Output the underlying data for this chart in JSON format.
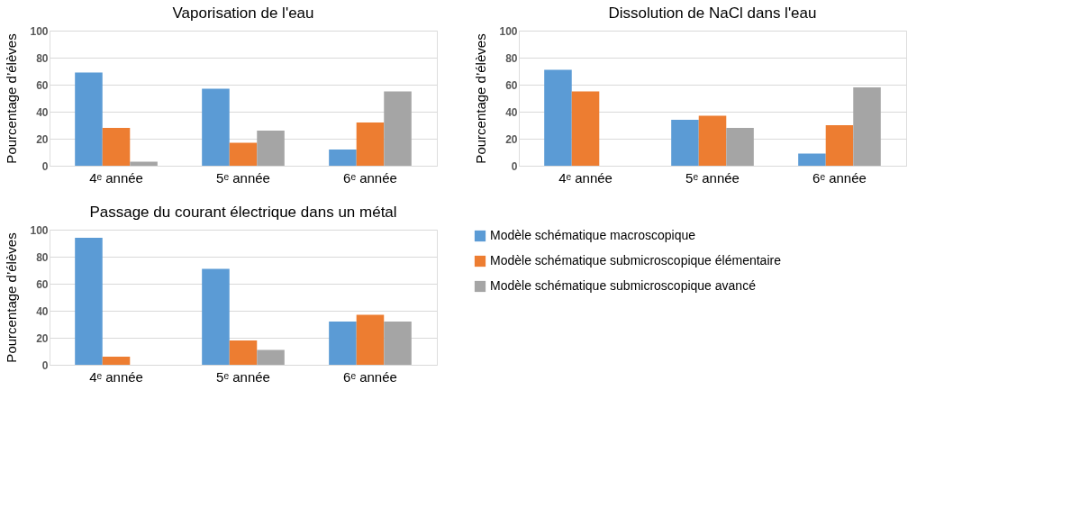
{
  "chart_data": [
    {
      "type": "bar",
      "title": "Vaporisation de l'eau",
      "ylabel": "Pourcentage d’élèves",
      "categories": [
        "4ᵉ année",
        "5ᵉ année",
        "6ᵉ année"
      ],
      "ylim": [
        0,
        100
      ],
      "yticks": [
        0,
        20,
        40,
        60,
        80,
        100
      ],
      "grid": "y",
      "series": [
        {
          "color": "#5b9bd5",
          "values": [
            69,
            57,
            12
          ]
        },
        {
          "color": "#ed7d31",
          "values": [
            28,
            17,
            32
          ]
        },
        {
          "color": "#a5a5a5",
          "values": [
            3,
            26,
            55
          ]
        }
      ]
    },
    {
      "type": "bar",
      "title": "Dissolution de NaCl dans l'eau",
      "ylabel": "Pourcentage d’élèves",
      "categories": [
        "4ᵉ année",
        "5ᵉ année",
        "6ᵉ année"
      ],
      "ylim": [
        0,
        100
      ],
      "yticks": [
        0,
        20,
        40,
        60,
        80,
        100
      ],
      "grid": "y",
      "series": [
        {
          "color": "#5b9bd5",
          "values": [
            71,
            34,
            9
          ]
        },
        {
          "color": "#ed7d31",
          "values": [
            55,
            37,
            30
          ]
        },
        {
          "color": "#a5a5a5",
          "values": [
            0,
            28,
            58
          ]
        }
      ]
    },
    {
      "type": "bar",
      "title": "Passage du courant électrique dans un métal",
      "ylabel": "Pourcentage d’élèves",
      "categories": [
        "4ᵉ année",
        "5ᵉ année",
        "6ᵉ année"
      ],
      "ylim": [
        0,
        100
      ],
      "yticks": [
        0,
        20,
        40,
        60,
        80,
        100
      ],
      "grid": "y",
      "legend": "right",
      "series": [
        {
          "name": "Modèle schématique macroscopique",
          "color": "#5b9bd5",
          "values": [
            94,
            71,
            32
          ]
        },
        {
          "name": "Modèle schématique submicroscopique élémentaire",
          "color": "#ed7d31",
          "values": [
            6,
            18,
            37
          ]
        },
        {
          "name": "Modèle schématique submicroscopique avancé",
          "color": "#a5a5a5",
          "values": [
            0,
            11,
            32
          ]
        }
      ]
    }
  ]
}
